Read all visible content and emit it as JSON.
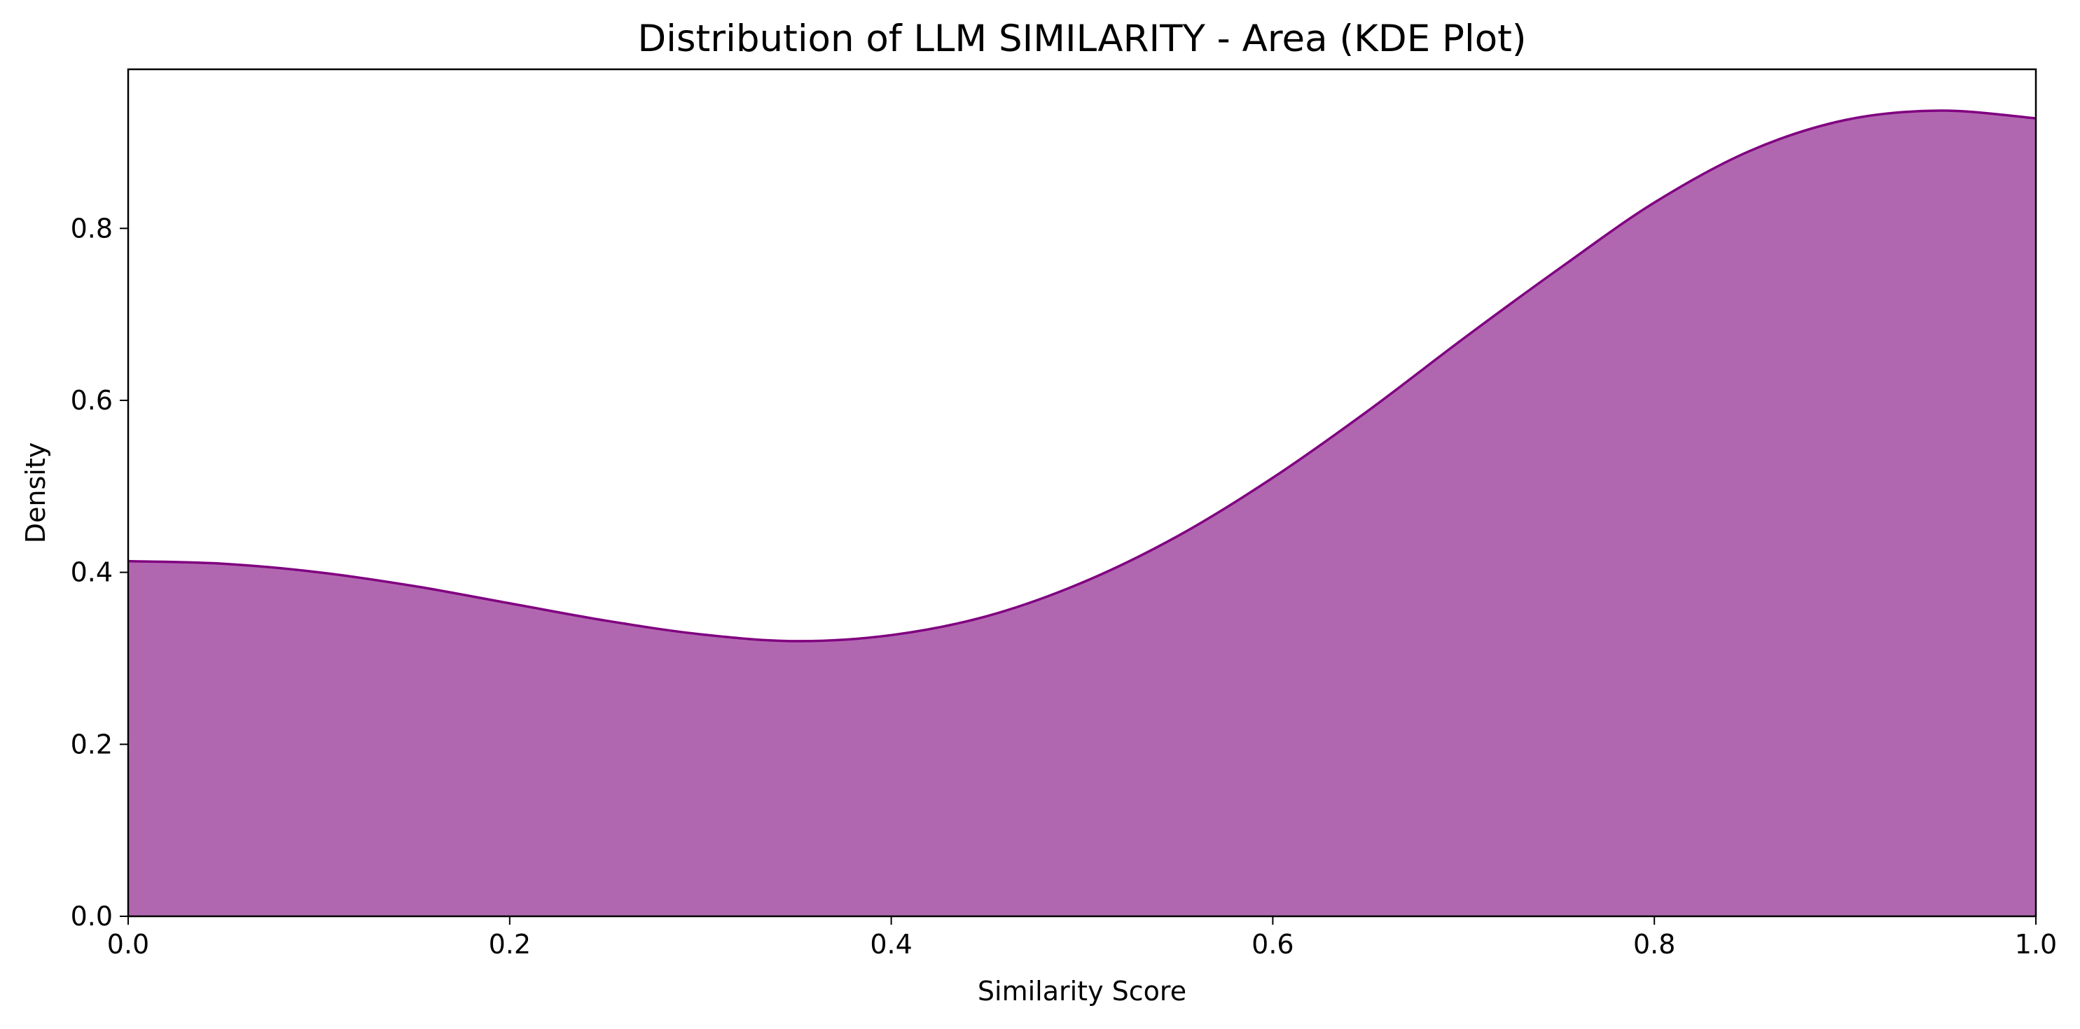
{
  "chart_data": {
    "type": "area",
    "title": "Distribution of LLM SIMILARITY - Area (KDE Plot)",
    "xlabel": "Similarity Score",
    "ylabel": "Density",
    "xlim": [
      0.0,
      1.0
    ],
    "ylim": [
      0.0,
      0.985
    ],
    "x_ticks": [
      0.0,
      0.2,
      0.4,
      0.6,
      0.8,
      1.0
    ],
    "x_tick_labels": [
      "0.0",
      "0.2",
      "0.4",
      "0.6",
      "0.8",
      "1.0"
    ],
    "y_ticks": [
      0.0,
      0.2,
      0.4,
      0.6,
      0.8
    ],
    "y_tick_labels": [
      "0.0",
      "0.2",
      "0.4",
      "0.6",
      "0.8"
    ],
    "grid": false,
    "legend": false,
    "series": [
      {
        "x": [
          0.0,
          0.05,
          0.1,
          0.15,
          0.2,
          0.25,
          0.3,
          0.35,
          0.4,
          0.45,
          0.5,
          0.55,
          0.6,
          0.65,
          0.7,
          0.75,
          0.8,
          0.85,
          0.9,
          0.95,
          1.0
        ],
        "y": [
          0.413,
          0.41,
          0.4,
          0.384,
          0.364,
          0.344,
          0.328,
          0.32,
          0.327,
          0.349,
          0.388,
          0.442,
          0.51,
          0.588,
          0.672,
          0.753,
          0.83,
          0.89,
          0.926,
          0.937,
          0.928
        ],
        "fill_color": "#b167b0",
        "line_color": "#800080"
      }
    ]
  }
}
